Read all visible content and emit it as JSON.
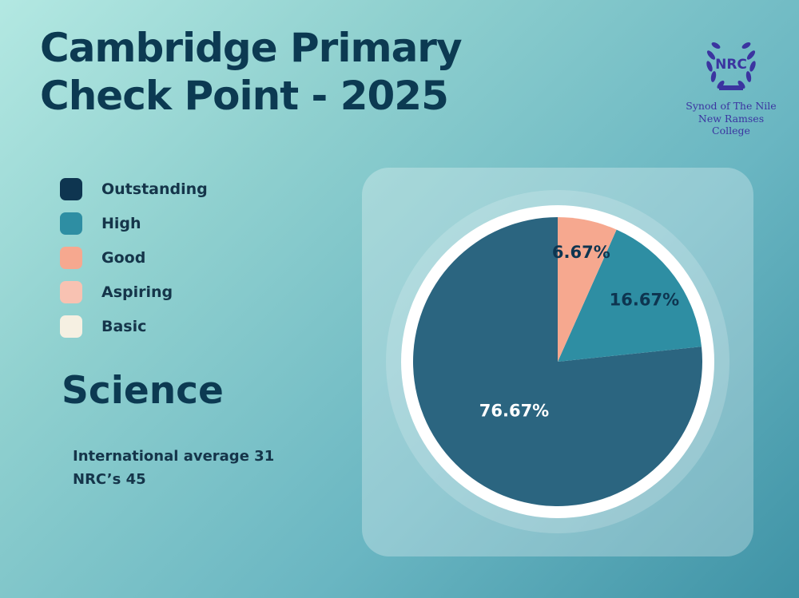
{
  "title": {
    "line1": "Cambridge Primary",
    "line2": "Check Point - 2025"
  },
  "legend": [
    {
      "label": "Outstanding",
      "color": "#0e3550"
    },
    {
      "label": "High",
      "color": "#2e8ea3"
    },
    {
      "label": "Good",
      "color": "#f6a88f"
    },
    {
      "label": "Aspiring",
      "color": "#f8c2b2"
    },
    {
      "label": "Basic",
      "color": "#f6f0e2"
    }
  ],
  "subject": "Science",
  "notes": {
    "international": "International average 31",
    "nrc": "NRC’s  45"
  },
  "logo": {
    "initials": "NRC",
    "line1": "Synod of The Nile",
    "line2": "New Ramses College"
  },
  "chart_data": {
    "type": "pie",
    "categories": [
      "Outstanding",
      "High",
      "Good",
      "Aspiring",
      "Basic"
    ],
    "values": [
      76.67,
      16.67,
      6.67,
      0,
      0
    ],
    "labels": [
      "76.67%",
      "16.67%",
      "6.67%",
      "",
      ""
    ],
    "colors": [
      "#2b6580",
      "#2e8ea3",
      "#f6a88f",
      "#f8c2b2",
      "#f6f0e2"
    ],
    "label_colors": [
      "#ffffff",
      "#0e3550",
      "#0e3550",
      "#0e3550",
      "#0e3550"
    ]
  }
}
